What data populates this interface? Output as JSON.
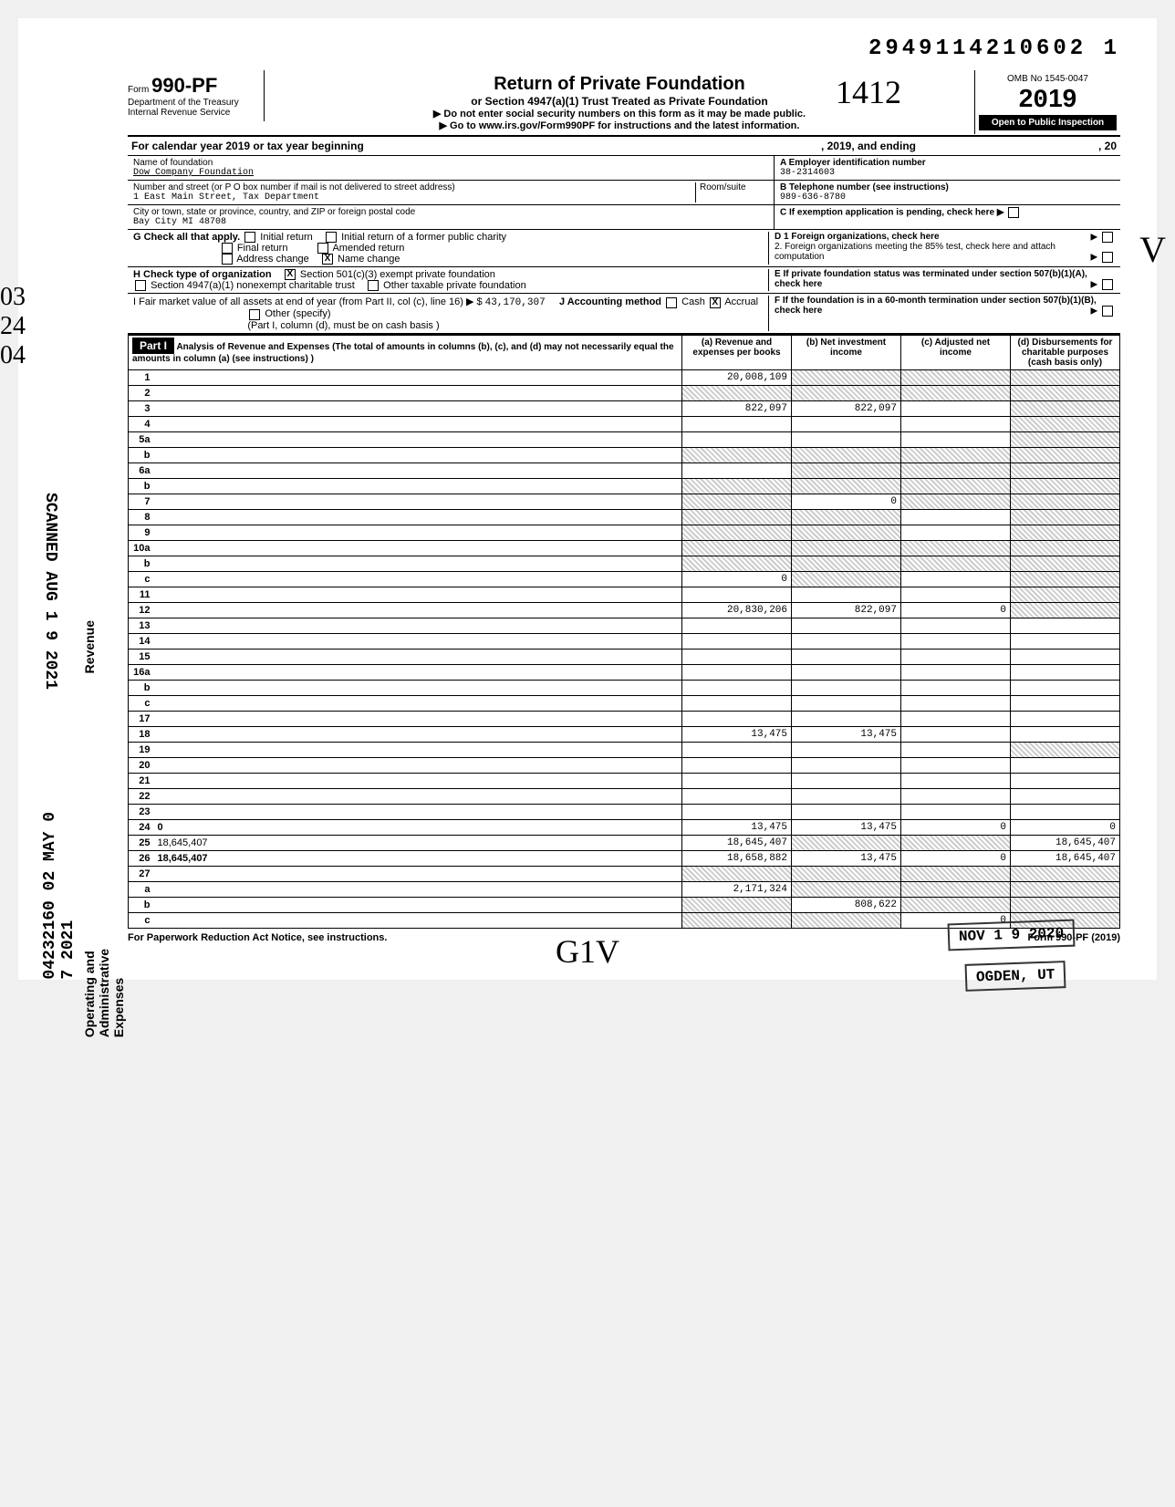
{
  "top_number": "2949114210602 1",
  "form": {
    "prefix": "Form",
    "number": "990-PF",
    "dept": "Department of the Treasury",
    "irs": "Internal Revenue Service",
    "title": "Return of Private Foundation",
    "subtitle": "or Section 4947(a)(1) Trust Treated as Private Foundation",
    "warn": "▶ Do not enter social security numbers on this form as it may be made public.",
    "goto": "▶ Go to www.irs.gov/Form990PF for instructions and the latest information.",
    "omb": "OMB No 1545-0047",
    "year": "2019",
    "open": "Open to Public Inspection"
  },
  "cal_year": {
    "prefix": "For calendar year 2019 or tax year beginning",
    "mid": ", 2019, and ending",
    "suffix": ", 20"
  },
  "name_label": "Name of foundation",
  "name": "Dow Company Foundation",
  "addr_label": "Number and street (or P O  box number if mail is not delivered to street address)",
  "room_label": "Room/suite",
  "addr": "1 East Main Street, Tax Department",
  "city_label": "City or town, state or province, country, and ZIP or foreign postal code",
  "city": "Bay City MI 48708",
  "a_label": "A  Employer identification number",
  "a_val": "38-2314603",
  "b_label": "B  Telephone number (see instructions)",
  "b_val": "989-636-8780",
  "c_label": "C  If exemption application is pending, check here ▶",
  "g": {
    "label": "G   Check all that apply.",
    "initial": "Initial return",
    "initial_former": "Initial return of a former public charity",
    "final": "Final return",
    "amended": "Amended return",
    "addr_change": "Address change",
    "name_change": "Name change"
  },
  "d": {
    "d1": "D  1  Foreign organizations, check here",
    "d2": "2. Foreign organizations meeting the 85% test, check here and attach computation"
  },
  "h": {
    "label": "H   Check type of organization",
    "c3": "Section 501(c)(3) exempt private foundation",
    "trust": "Section 4947(a)(1) nonexempt charitable trust",
    "other": "Other taxable private foundation"
  },
  "e": {
    "label": "E  If private foundation status was terminated under section 507(b)(1)(A), check here"
  },
  "i": {
    "fmv": "I    Fair market value of all assets at end of year  (from Part II, col  (c), line 16) ▶ $",
    "fmv_val": "43,170,307",
    "j": "J   Accounting method",
    "cash": "Cash",
    "accrual": "Accrual",
    "other": "Other (specify)",
    "note": "(Part I, column (d), must be on cash basis )"
  },
  "f": {
    "label": "F  If the foundation is in a 60-month termination under section 507(b)(1)(B), check here"
  },
  "part1": {
    "tag": "Part I",
    "title": "Analysis of Revenue and Expenses",
    "note": "(The total of amounts in columns (b), (c), and (d) may not necessarily equal the amounts in column (a) (see instructions) )",
    "col_a": "(a) Revenue and expenses per books",
    "col_b": "(b) Net investment income",
    "col_c": "(c) Adjusted net income",
    "col_d": "(d) Disbursements for charitable purposes (cash basis only)"
  },
  "side": {
    "revenue": "Revenue",
    "expenses": "Operating and Administrative Expenses",
    "scanned": "SCANNED AUG 1 9 2021",
    "vertnum": "04232160 02 MAY 0 7 2021"
  },
  "rows": [
    {
      "n": "1",
      "d": "",
      "a": "20,008,109",
      "b": "",
      "c": "",
      "sb": true,
      "sc": true,
      "sd": true
    },
    {
      "n": "2",
      "d": "",
      "a": "",
      "b": "",
      "c": "",
      "sa": true,
      "sb": true,
      "sc": true,
      "sd": true
    },
    {
      "n": "3",
      "d": "",
      "a": "822,097",
      "b": "822,097",
      "c": "",
      "sd": true
    },
    {
      "n": "4",
      "d": "",
      "a": "",
      "b": "",
      "c": "",
      "sd": true
    },
    {
      "n": "5a",
      "d": "",
      "a": "",
      "b": "",
      "c": "",
      "sd": true
    },
    {
      "n": "b",
      "d": "",
      "a": "",
      "b": "",
      "c": "",
      "sa": true,
      "sb": true,
      "sc": true,
      "sd": true
    },
    {
      "n": "6a",
      "d": "",
      "a": "",
      "b": "",
      "c": "",
      "sb": true,
      "sc": true,
      "sd": true
    },
    {
      "n": "b",
      "d": "",
      "a": "",
      "b": "",
      "c": "",
      "sa": true,
      "sb": true,
      "sc": true,
      "sd": true
    },
    {
      "n": "7",
      "d": "",
      "a": "",
      "b": "0",
      "c": "",
      "sa": true,
      "sc": true,
      "sd": true
    },
    {
      "n": "8",
      "d": "",
      "a": "",
      "b": "",
      "c": "",
      "sa": true,
      "sb": true,
      "sd": true
    },
    {
      "n": "9",
      "d": "",
      "a": "",
      "b": "",
      "c": "",
      "sa": true,
      "sb": true,
      "sd": true
    },
    {
      "n": "10a",
      "d": "",
      "a": "",
      "b": "",
      "c": "",
      "sa": true,
      "sb": true,
      "sc": true,
      "sd": true
    },
    {
      "n": "b",
      "d": "",
      "a": "",
      "b": "",
      "c": "",
      "sa": true,
      "sb": true,
      "sc": true,
      "sd": true
    },
    {
      "n": "c",
      "d": "",
      "a": "0",
      "b": "",
      "c": "",
      "sb": true,
      "sd": true
    },
    {
      "n": "11",
      "d": "",
      "a": "",
      "b": "",
      "c": "",
      "sd": true
    },
    {
      "n": "12",
      "d": "",
      "a": "20,830,206",
      "b": "822,097",
      "c": "0",
      "bold": true,
      "sd": true
    },
    {
      "n": "13",
      "d": "",
      "a": "",
      "b": "",
      "c": ""
    },
    {
      "n": "14",
      "d": "",
      "a": "",
      "b": "",
      "c": ""
    },
    {
      "n": "15",
      "d": "",
      "a": "",
      "b": "",
      "c": ""
    },
    {
      "n": "16a",
      "d": "",
      "a": "",
      "b": "",
      "c": ""
    },
    {
      "n": "b",
      "d": "",
      "a": "",
      "b": "",
      "c": ""
    },
    {
      "n": "c",
      "d": "",
      "a": "",
      "b": "",
      "c": ""
    },
    {
      "n": "17",
      "d": "",
      "a": "",
      "b": "",
      "c": ""
    },
    {
      "n": "18",
      "d": "",
      "a": "13,475",
      "b": "13,475",
      "c": ""
    },
    {
      "n": "19",
      "d": "",
      "a": "",
      "b": "",
      "c": "",
      "sd": true
    },
    {
      "n": "20",
      "d": "",
      "a": "",
      "b": "",
      "c": ""
    },
    {
      "n": "21",
      "d": "",
      "a": "",
      "b": "",
      "c": ""
    },
    {
      "n": "22",
      "d": "",
      "a": "",
      "b": "",
      "c": ""
    },
    {
      "n": "23",
      "d": "",
      "a": "",
      "b": "",
      "c": ""
    },
    {
      "n": "24",
      "d": "0",
      "a": "13,475",
      "b": "13,475",
      "c": "0",
      "bold": true
    },
    {
      "n": "25",
      "d": "18,645,407",
      "a": "18,645,407",
      "b": "",
      "c": "",
      "sb": true,
      "sc": true
    },
    {
      "n": "26",
      "d": "18,645,407",
      "a": "18,658,882",
      "b": "13,475",
      "c": "0",
      "bold": true
    },
    {
      "n": "27",
      "d": "",
      "a": "",
      "b": "",
      "c": "",
      "sa": true,
      "sb": true,
      "sc": true,
      "sd": true
    },
    {
      "n": "a",
      "d": "",
      "a": "2,171,324",
      "b": "",
      "c": "",
      "bold": true,
      "sb": true,
      "sc": true,
      "sd": true
    },
    {
      "n": "b",
      "d": "",
      "a": "",
      "b": "808,622",
      "c": "",
      "bold": true,
      "sa": true,
      "sc": true,
      "sd": true
    },
    {
      "n": "c",
      "d": "",
      "a": "",
      "b": "",
      "c": "0",
      "bold": true,
      "sa": true,
      "sb": true,
      "sd": true
    }
  ],
  "footer": {
    "left": "For Paperwork Reduction Act Notice, see instructions.",
    "right": "Form 990-PF (2019)"
  },
  "stamps": {
    "nov": "NOV 1 9 2020",
    "ogden": "OGDEN, UT"
  },
  "hand": {
    "top": "03\n24\n04",
    "bottom": "G1V",
    "right": "V",
    "num": "1412"
  }
}
